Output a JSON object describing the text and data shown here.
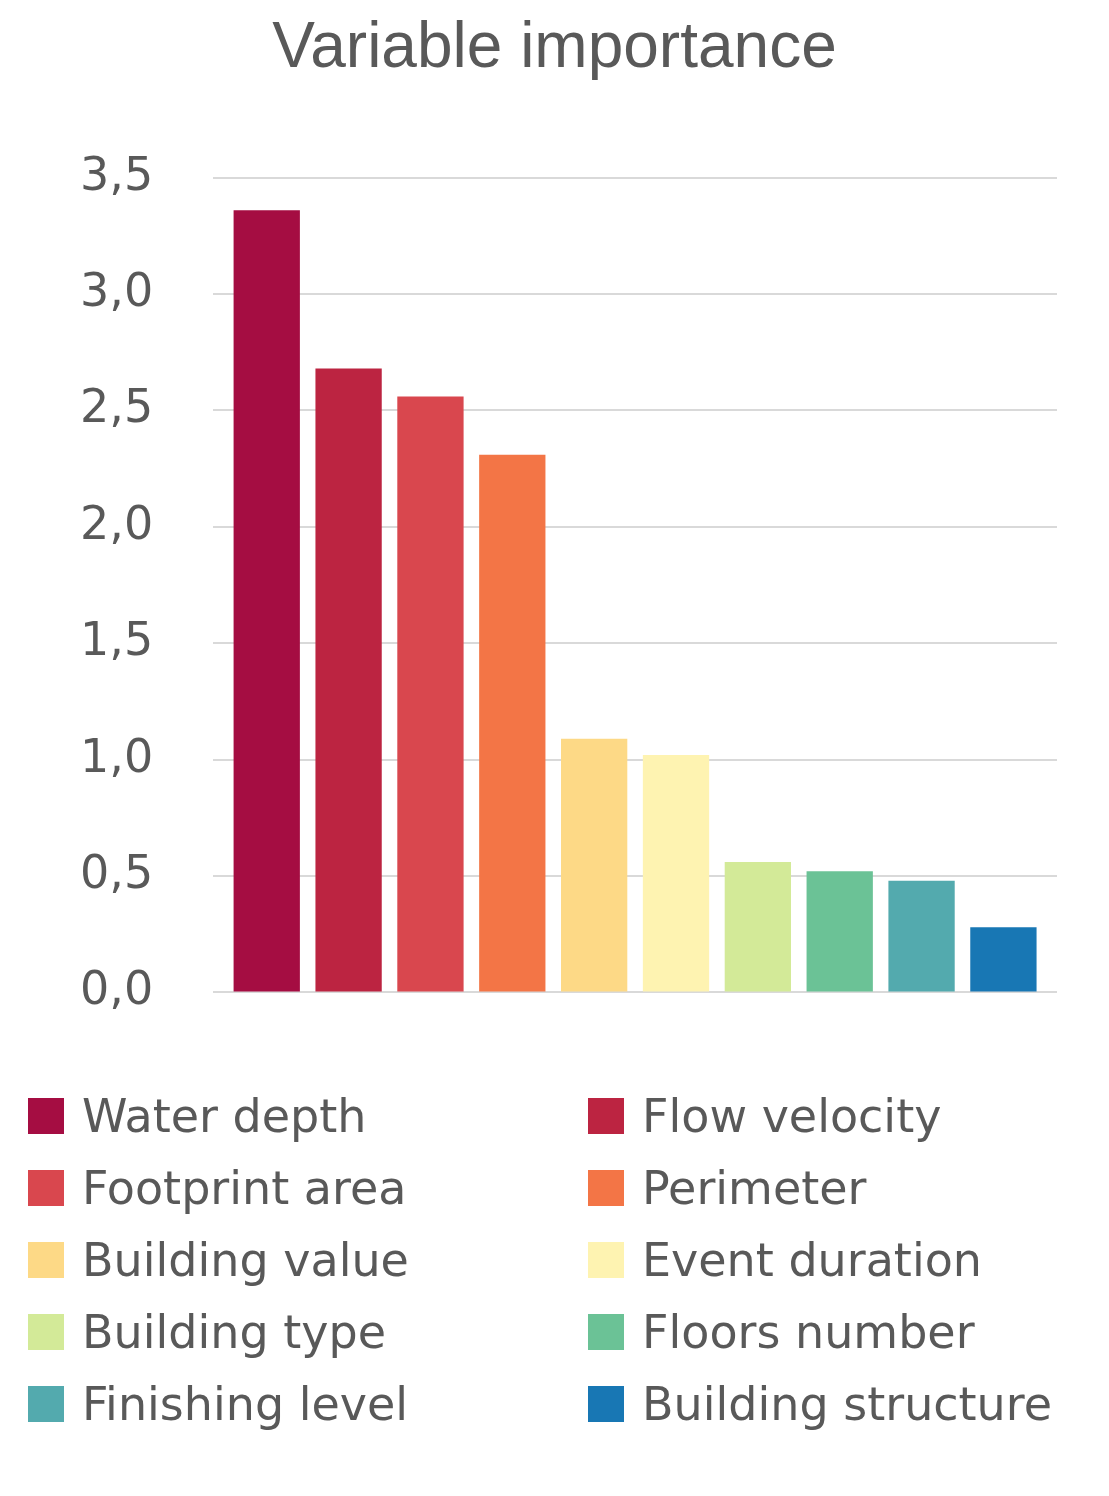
{
  "chart_data": {
    "type": "bar",
    "title": "Variable importance",
    "categories": [
      null
    ],
    "series": [
      {
        "name": "Water depth",
        "color": "#a50d42",
        "values": [
          3.36
        ]
      },
      {
        "name": "Flow velocity",
        "color": "#bc2441",
        "values": [
          2.68
        ]
      },
      {
        "name": "Footprint area",
        "color": "#d9474e",
        "values": [
          2.56
        ]
      },
      {
        "name": "Perimeter",
        "color": "#f37546",
        "values": [
          2.31
        ]
      },
      {
        "name": "Building value",
        "color": "#fdd986",
        "values": [
          1.09
        ]
      },
      {
        "name": "Event duration",
        "color": "#fef3b1",
        "values": [
          1.02
        ]
      },
      {
        "name": "Building type",
        "color": "#d3ea98",
        "values": [
          0.56
        ]
      },
      {
        "name": "Floors number",
        "color": "#6bc296",
        "values": [
          0.52
        ]
      },
      {
        "name": "Finishing level",
        "color": "#53aaae",
        "values": [
          0.48
        ]
      },
      {
        "name": "Building structure",
        "color": "#1877b4",
        "values": [
          0.28
        ]
      }
    ],
    "ylim": [
      0,
      3.5
    ],
    "yticks": [
      {
        "value": 0,
        "label": "0,0"
      },
      {
        "value": 0.5,
        "label": "0,5"
      },
      {
        "value": 1,
        "label": "1,0"
      },
      {
        "value": 1.5,
        "label": "1,5"
      },
      {
        "value": 2,
        "label": "2,0"
      },
      {
        "value": 2.5,
        "label": "2,5"
      },
      {
        "value": 3,
        "label": "3,0"
      },
      {
        "value": 3.5,
        "label": "3,5"
      }
    ],
    "grid": "y",
    "legend": "bottom"
  }
}
